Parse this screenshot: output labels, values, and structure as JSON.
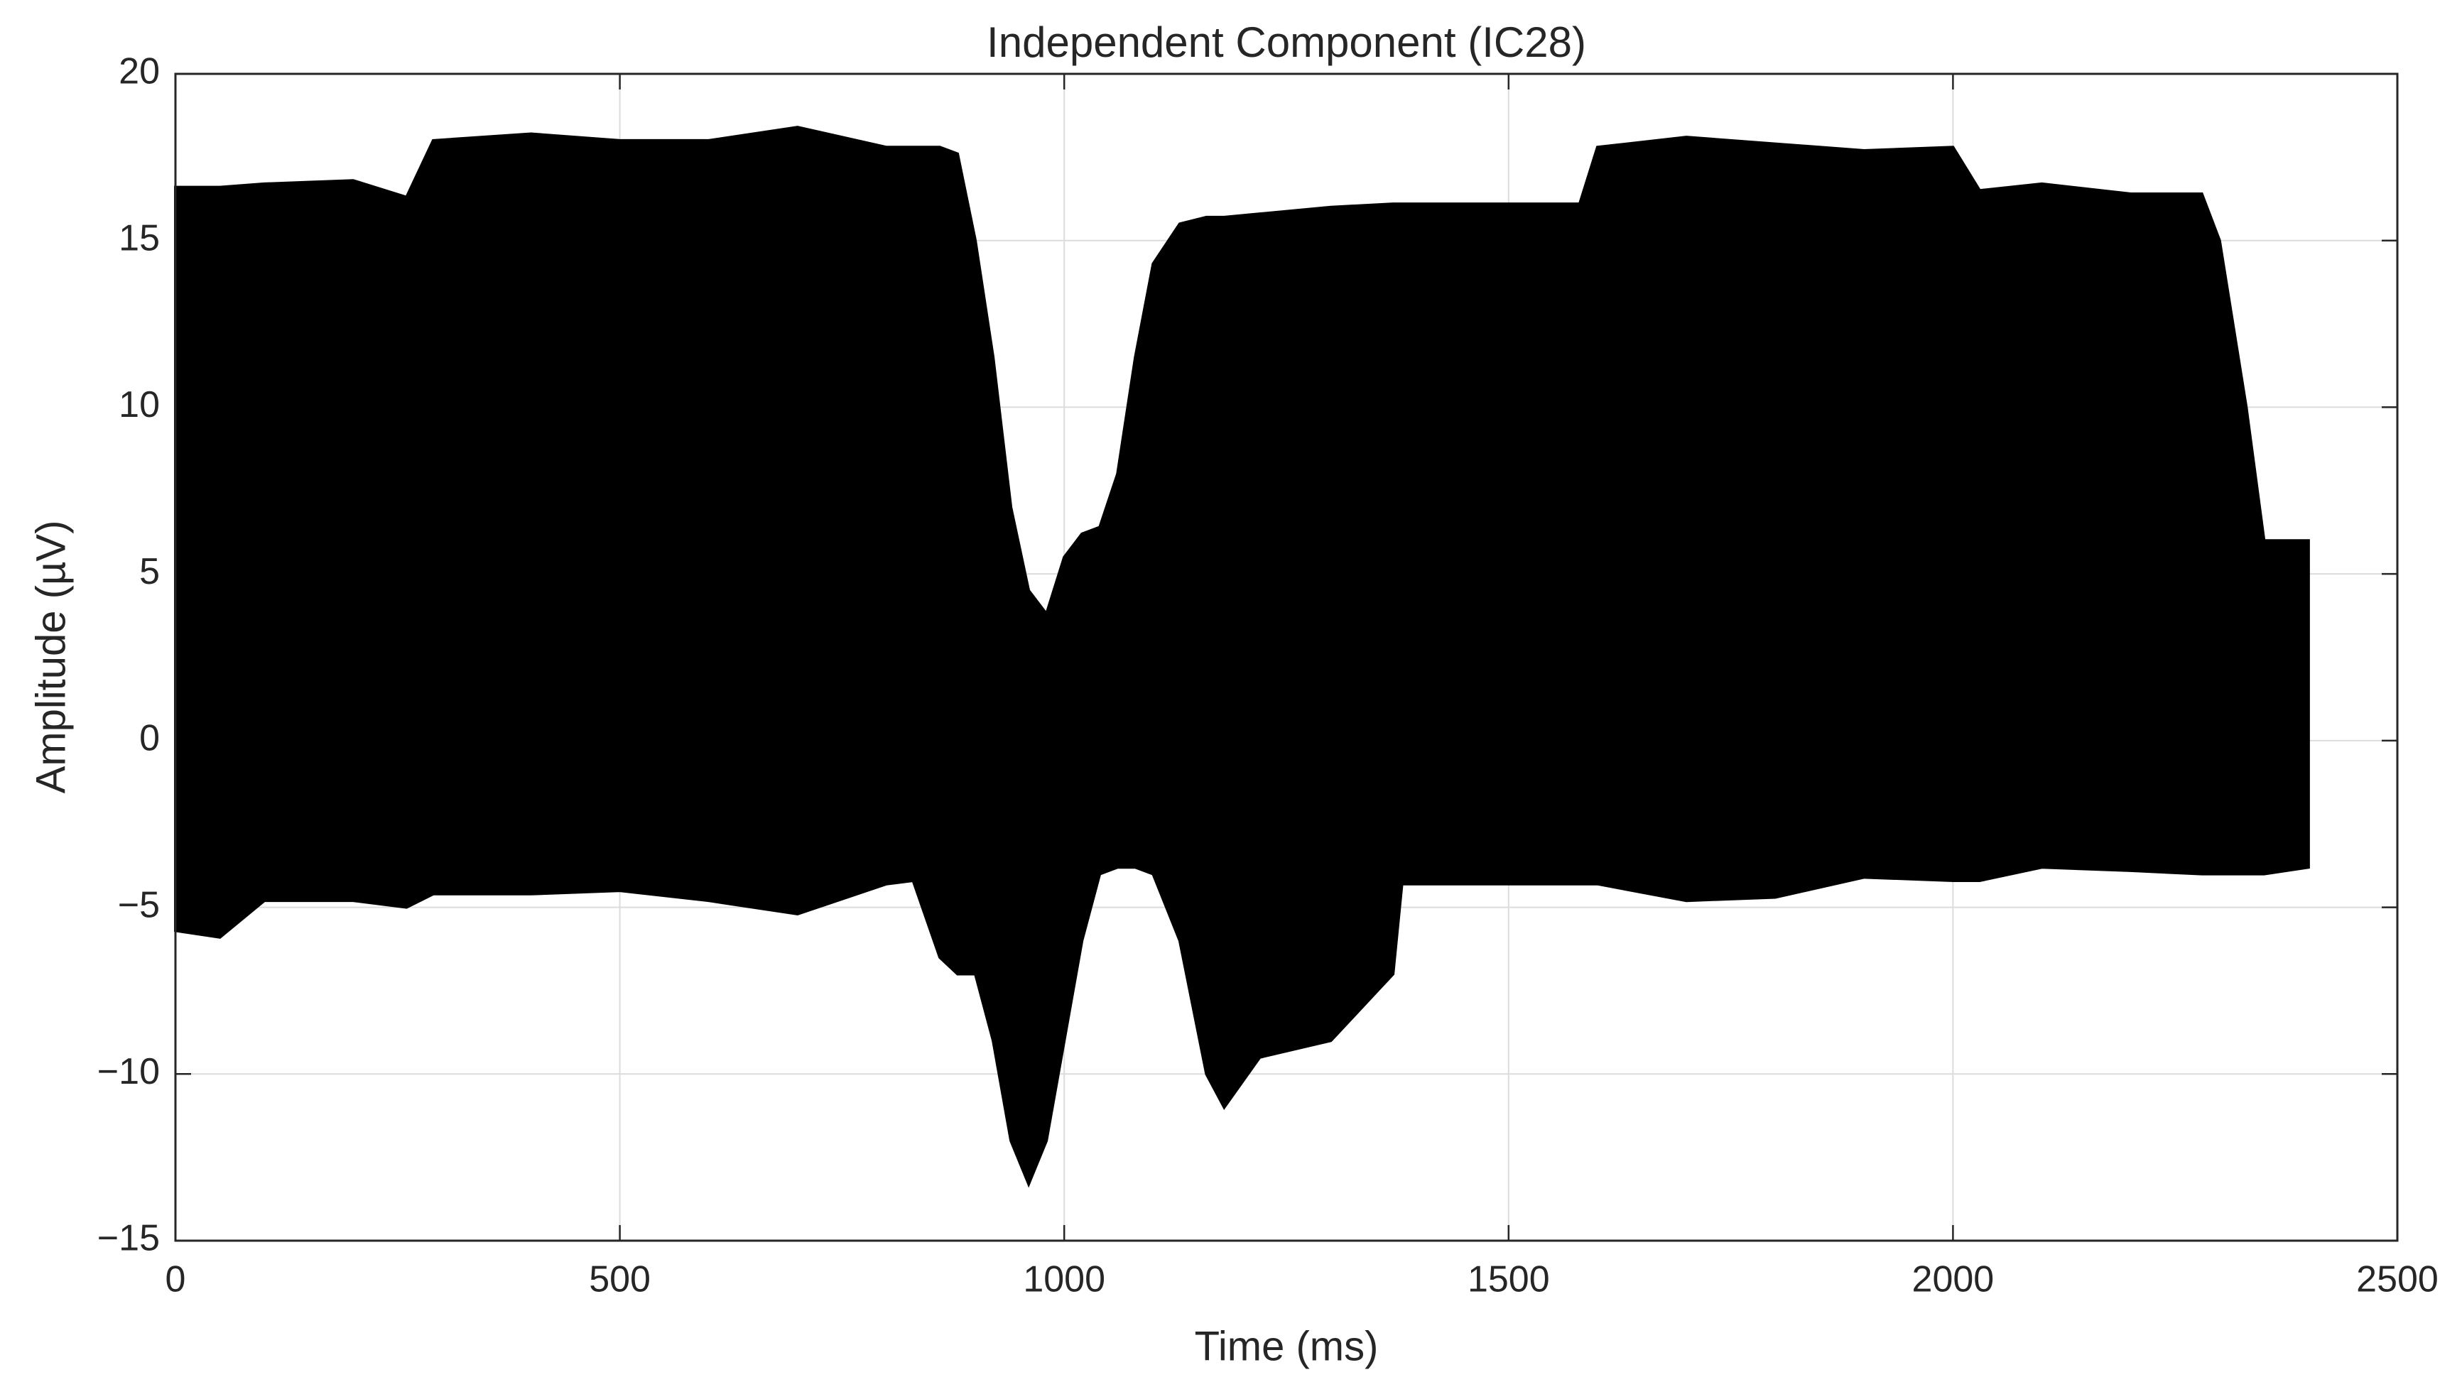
{
  "chart_data": {
    "type": "band",
    "title": "Independent Component (IC28)",
    "xlabel": "Time (ms)",
    "ylabel": "Amplitude (µV)",
    "color": "#000000",
    "grid": true,
    "x": [
      0,
      50,
      100,
      200,
      260,
      290,
      400,
      500,
      600,
      700,
      800,
      830,
      860,
      880,
      900,
      920,
      940,
      960,
      980,
      1000,
      1020,
      1040,
      1060,
      1080,
      1100,
      1130,
      1160,
      1180,
      1220,
      1300,
      1370,
      1380,
      1500,
      1580,
      1600,
      1700,
      1800,
      1900,
      2000,
      2030,
      2100,
      2200,
      2280,
      2300,
      2330,
      2350,
      2400
    ],
    "upper": [
      16.6,
      16.6,
      16.7,
      16.8,
      16.3,
      18.0,
      18.2,
      18.0,
      18.0,
      18.4,
      17.8,
      17.8,
      17.8,
      17.6,
      15,
      11.5,
      7,
      4.5,
      3.8,
      5.5,
      6.2,
      6.4,
      8,
      11.5,
      14.3,
      15.5,
      15.7,
      15.7,
      15.8,
      16.0,
      16.1,
      16.1,
      16.1,
      16.1,
      17.8,
      18.1,
      17.9,
      17.7,
      17.8,
      16.5,
      16.7,
      16.4,
      16.4,
      15,
      10,
      6,
      6
    ],
    "lower": [
      -5.7,
      -5.9,
      -4.8,
      -4.8,
      -5,
      -4.6,
      -4.6,
      -4.5,
      -4.8,
      -5.2,
      -4.3,
      -4.2,
      -6.5,
      -7,
      -7,
      -9,
      -12,
      -13.3,
      -12,
      -9,
      -6,
      -4,
      -3.8,
      -3.8,
      -4,
      -6,
      -10,
      -11,
      -9.5,
      -9,
      -7,
      -4.3,
      -4.3,
      -4.3,
      -4.3,
      -4.8,
      -4.7,
      -4.1,
      -4.2,
      -4.2,
      -3.8,
      -3.9,
      -4,
      -4,
      -4,
      -4,
      -3.8
    ],
    "xlim": [
      0,
      2500
    ],
    "xticks": [
      0,
      500,
      1000,
      1500,
      2000,
      2500
    ],
    "ylim": [
      -15,
      20
    ],
    "yticks": [
      {
        "value": -15,
        "label": "−15"
      },
      {
        "value": -10,
        "label": "−10"
      },
      {
        "value": -5,
        "label": "−5"
      },
      0,
      5,
      10,
      15,
      20
    ]
  }
}
